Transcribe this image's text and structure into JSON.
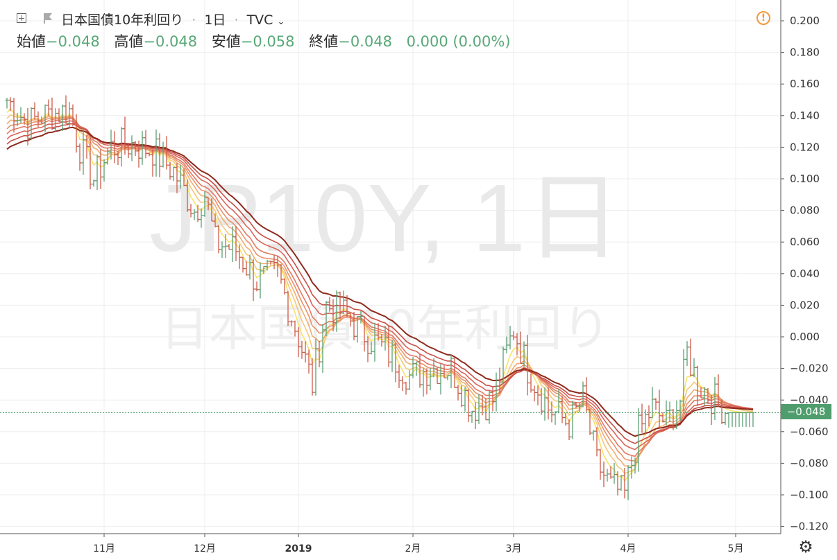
{
  "header": {
    "symbol_name": "日本国債10年利回り",
    "interval": "1日",
    "source": "TVC",
    "ohlc": {
      "open_label": "始値",
      "open_value": "−0.048",
      "high_label": "高値",
      "high_value": "−0.048",
      "low_label": "安値",
      "low_value": "−0.058",
      "close_label": "終値",
      "close_value": "−0.048",
      "change_value": "0.000 (0.00%)"
    }
  },
  "price_tag": "−0.048",
  "watermark": {
    "line1": "JP10Y, 1日",
    "line2": "日本国債10年利回り"
  },
  "icons": {
    "add": "plus-box-icon",
    "flag": "flag-icon",
    "warning": "warning-circle-icon",
    "settings": "gear-icon"
  },
  "colors": {
    "up": "#5b9f72",
    "down": "#cd5a48",
    "grid": "#ededed",
    "price_line": "#4f9d6d"
  },
  "chart_data": {
    "type": "ohlc",
    "y_ticks": [
      "0.200",
      "0.180",
      "0.160",
      "0.140",
      "0.120",
      "0.100",
      "0.080",
      "0.060",
      "0.040",
      "0.020",
      "0.000",
      "−0.020",
      "−0.040",
      "−0.060",
      "−0.080",
      "−0.100",
      "−0.120"
    ],
    "y_tick_values": [
      0.2,
      0.18,
      0.16,
      0.14,
      0.12,
      0.1,
      0.08,
      0.06,
      0.04,
      0.02,
      0.0,
      -0.02,
      -0.04,
      -0.06,
      -0.08,
      -0.1,
      -0.12
    ],
    "x_ticks": [
      {
        "label": "11月",
        "index": 28
      },
      {
        "label": "12月",
        "index": 57
      },
      {
        "label": "2019",
        "index": 84
      },
      {
        "label": "2月",
        "index": 117
      },
      {
        "label": "3月",
        "index": 146
      },
      {
        "label": "4月",
        "index": 179
      },
      {
        "label": "5月",
        "index": 210
      }
    ],
    "bars": 216,
    "close_path": [
      [
        0,
        0.15
      ],
      [
        6,
        0.135
      ],
      [
        10,
        0.14
      ],
      [
        18,
        0.143
      ],
      [
        21,
        0.12
      ],
      [
        25,
        0.1
      ],
      [
        30,
        0.12
      ],
      [
        36,
        0.122
      ],
      [
        42,
        0.118
      ],
      [
        48,
        0.105
      ],
      [
        54,
        0.08
      ],
      [
        57,
        0.09
      ],
      [
        60,
        0.06
      ],
      [
        66,
        0.055
      ],
      [
        72,
        0.035
      ],
      [
        78,
        0.04
      ],
      [
        84,
        0.0
      ],
      [
        88,
        -0.03
      ],
      [
        92,
        0.02
      ],
      [
        97,
        0.015
      ],
      [
        104,
        0.0
      ],
      [
        110,
        -0.01
      ],
      [
        116,
        -0.025
      ],
      [
        122,
        -0.02
      ],
      [
        128,
        -0.02
      ],
      [
        134,
        -0.045
      ],
      [
        140,
        -0.04
      ],
      [
        146,
        0.005
      ],
      [
        150,
        -0.02
      ],
      [
        156,
        -0.045
      ],
      [
        162,
        -0.055
      ],
      [
        166,
        -0.04
      ],
      [
        170,
        -0.08
      ],
      [
        174,
        -0.095
      ],
      [
        178,
        -0.1
      ],
      [
        182,
        -0.06
      ],
      [
        186,
        -0.045
      ],
      [
        190,
        -0.055
      ],
      [
        194,
        -0.04
      ],
      [
        196,
        -0.01
      ],
      [
        199,
        -0.03
      ],
      [
        204,
        -0.04
      ],
      [
        208,
        -0.048
      ],
      [
        215,
        -0.048
      ]
    ],
    "moving_average_ribbon": {
      "count": 8,
      "colors": [
        "#f6e36b",
        "#f4c97a",
        "#efad72",
        "#e9926b",
        "#e27a62",
        "#d8655a",
        "#c84e45",
        "#8e2a1d"
      ],
      "smoothing_lags": [
        3,
        5,
        7,
        9,
        11,
        14,
        17,
        21
      ]
    },
    "last_value": -0.048
  }
}
